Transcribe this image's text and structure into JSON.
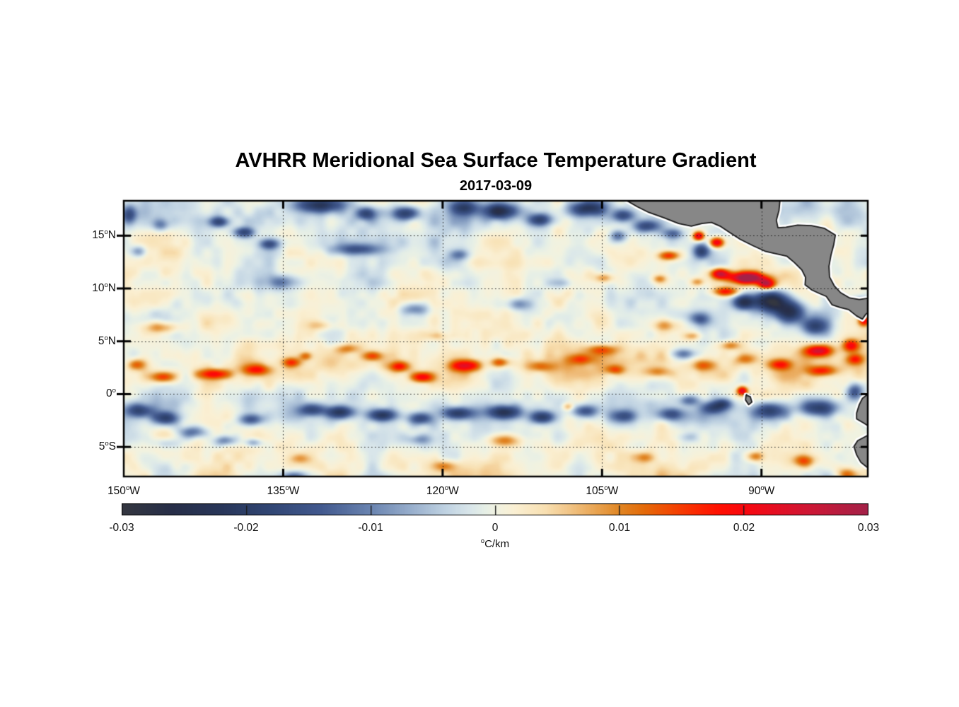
{
  "figure": {
    "title": "AVHRR Meridional Sea Surface Temperature Gradient",
    "date": "2017-03-09"
  },
  "chart_data": {
    "type": "heatmap",
    "title": "AVHRR Meridional Sea Surface Temperature Gradient",
    "subtitle": "2017-03-09",
    "lon_range_degW": [
      150,
      80
    ],
    "lat_range_degN": [
      -7.8,
      18.3
    ],
    "grid": {
      "style": "dotted",
      "lons_degW": [
        135,
        120,
        105,
        90
      ],
      "lats_degN": [
        15,
        10,
        5,
        0,
        -5
      ]
    },
    "x_axis": {
      "ticks": [
        {
          "lon": 150,
          "label": "150^oW"
        },
        {
          "lon": 135,
          "label": "135^oW"
        },
        {
          "lon": 120,
          "label": "120^oW"
        },
        {
          "lon": 105,
          "label": "105^oW"
        },
        {
          "lon": 90,
          "label": "90^oW"
        }
      ]
    },
    "y_axis": {
      "ticks": [
        {
          "lat": 15,
          "label": "15^oN"
        },
        {
          "lat": 10,
          "label": "10^oN"
        },
        {
          "lat": 5,
          "label": "5^oN"
        },
        {
          "lat": 0,
          "label": "0^o"
        },
        {
          "lat": -5,
          "label": "5^oS"
        }
      ]
    },
    "colorbar": {
      "min": -0.03,
      "max": 0.03,
      "tick_values": [
        -0.03,
        -0.02,
        -0.01,
        0,
        0.01,
        0.02,
        0.03
      ],
      "tick_labels": [
        "-0.03",
        "-0.02",
        "-0.01",
        "0",
        "0.01",
        "0.02",
        "0.03"
      ],
      "unit_label": "^oC/km",
      "orientation": "horizontal"
    },
    "colormap": [
      [
        -0.03,
        "#343740"
      ],
      [
        -0.026,
        "#272e48"
      ],
      [
        -0.022,
        "#283659"
      ],
      [
        -0.018,
        "#314674"
      ],
      [
        -0.014,
        "#42598e"
      ],
      [
        -0.01,
        "#6a84b0"
      ],
      [
        -0.007,
        "#94abca"
      ],
      [
        -0.004,
        "#bfd2e2"
      ],
      [
        -0.002,
        "#d9e6ea"
      ],
      [
        -0.0008,
        "#e6efe6"
      ],
      [
        0.0,
        "#f0f2e2"
      ],
      [
        0.0015,
        "#faf0d4"
      ],
      [
        0.004,
        "#f8e0b2"
      ],
      [
        0.006,
        "#f1c486"
      ],
      [
        0.008,
        "#e9a554"
      ],
      [
        0.01,
        "#e08624"
      ],
      [
        0.012,
        "#e46a09"
      ],
      [
        0.014,
        "#f14a03"
      ],
      [
        0.016,
        "#fa2b01"
      ],
      [
        0.018,
        "#ff1001"
      ],
      [
        0.02,
        "#f9080e"
      ],
      [
        0.0225,
        "#e50e22"
      ],
      [
        0.025,
        "#d01633"
      ],
      [
        0.0275,
        "#b91c3e"
      ],
      [
        0.03,
        "#a32148"
      ]
    ],
    "land_color": "#878787",
    "coast_halo_color": "#ffffff",
    "coast_line_color": "#1b1b1b",
    "bias_lat_gaussians": [
      [
        2.6,
        2.2,
        0.0035
      ],
      [
        -1.8,
        1.8,
        -0.0012
      ],
      [
        -6.5,
        2.0,
        0.0015
      ],
      [
        17.5,
        1.5,
        -0.0025
      ]
    ],
    "noise": {
      "seed": 77,
      "octaves": [
        [
          18,
          7,
          0.003
        ],
        [
          36,
          14,
          0.0026
        ],
        [
          72,
          27,
          0.0016
        ]
      ]
    },
    "features": [
      [
        149.5,
        17.0,
        0.7,
        0.9,
        -0.014
      ],
      [
        146.5,
        16.0,
        0.8,
        0.6,
        -0.01
      ],
      [
        141.0,
        16.3,
        0.9,
        0.5,
        -0.015
      ],
      [
        138.7,
        15.3,
        1.0,
        0.5,
        -0.017
      ],
      [
        136.3,
        14.2,
        0.9,
        0.5,
        -0.015
      ],
      [
        131.5,
        17.9,
        2.3,
        0.75,
        -0.021
      ],
      [
        127.2,
        17.1,
        1.0,
        0.6,
        -0.017
      ],
      [
        123.5,
        17.1,
        1.3,
        0.65,
        -0.019
      ],
      [
        118.0,
        17.6,
        1.3,
        0.7,
        -0.016
      ],
      [
        114.5,
        17.3,
        1.7,
        0.7,
        -0.021
      ],
      [
        110.8,
        16.5,
        1.2,
        0.6,
        -0.017
      ],
      [
        106.3,
        17.6,
        1.6,
        0.7,
        -0.019
      ],
      [
        103.0,
        16.9,
        1.1,
        0.6,
        -0.016
      ],
      [
        100.8,
        15.9,
        1.3,
        0.6,
        -0.016
      ],
      [
        98.3,
        15.2,
        0.9,
        0.5,
        -0.013
      ],
      [
        103.5,
        15.0,
        0.8,
        0.6,
        -0.013
      ],
      [
        128.0,
        13.7,
        2.2,
        0.55,
        -0.013
      ],
      [
        118.5,
        13.2,
        0.9,
        0.5,
        -0.009
      ],
      [
        148.6,
        13.5,
        0.8,
        0.55,
        -0.011
      ],
      [
        135.0,
        10.6,
        1.4,
        0.7,
        -0.011
      ],
      [
        122.6,
        8.0,
        1.3,
        0.6,
        -0.011
      ],
      [
        112.6,
        8.5,
        1.4,
        0.6,
        -0.009
      ],
      [
        109.0,
        10.5,
        1.0,
        0.5,
        -0.007
      ],
      [
        95.7,
        13.5,
        0.8,
        0.7,
        -0.015
      ],
      [
        95.8,
        7.1,
        1.0,
        0.6,
        -0.012
      ],
      [
        97.2,
        3.8,
        1.3,
        0.5,
        -0.011
      ],
      [
        95.9,
        14.95,
        0.55,
        0.45,
        0.026
      ],
      [
        94.2,
        14.35,
        0.7,
        0.5,
        0.024
      ],
      [
        98.7,
        13.1,
        1.0,
        0.45,
        0.016
      ],
      [
        93.9,
        11.4,
        0.9,
        0.5,
        0.026
      ],
      [
        91.3,
        11.0,
        1.7,
        0.55,
        0.034
      ],
      [
        89.5,
        10.4,
        0.8,
        0.5,
        0.024
      ],
      [
        93.4,
        9.7,
        1.2,
        0.45,
        0.018
      ],
      [
        96.0,
        10.6,
        0.7,
        0.4,
        0.01
      ],
      [
        99.6,
        10.9,
        0.7,
        0.4,
        0.009
      ],
      [
        104.8,
        11.0,
        0.9,
        0.45,
        0.009
      ],
      [
        89.2,
        8.8,
        1.6,
        0.95,
        -0.027
      ],
      [
        91.7,
        8.7,
        1.0,
        0.7,
        -0.021
      ],
      [
        87.3,
        7.7,
        1.5,
        1.0,
        -0.025
      ],
      [
        85.0,
        6.4,
        1.2,
        0.85,
        -0.018
      ],
      [
        80.6,
        8.6,
        0.8,
        0.6,
        -0.014
      ],
      [
        84.6,
        4.1,
        1.3,
        0.55,
        0.023
      ],
      [
        81.6,
        4.6,
        0.75,
        0.6,
        0.018
      ],
      [
        80.3,
        6.9,
        0.6,
        0.5,
        0.02
      ],
      [
        91.8,
        0.3,
        0.5,
        0.42,
        0.024
      ],
      [
        86.0,
        -6.3,
        1.0,
        0.6,
        0.014
      ],
      [
        90.6,
        -5.9,
        0.9,
        0.5,
        0.011
      ],
      [
        82.0,
        -7.6,
        1.0,
        0.6,
        0.012
      ],
      [
        146.5,
        6.3,
        1.6,
        0.55,
        0.01
      ],
      [
        148.8,
        2.8,
        0.9,
        0.55,
        0.012
      ],
      [
        146.3,
        1.6,
        1.2,
        0.5,
        0.013
      ],
      [
        141.5,
        1.9,
        1.6,
        0.5,
        0.018
      ],
      [
        137.5,
        2.3,
        1.3,
        0.5,
        0.014
      ],
      [
        134.2,
        3.0,
        0.9,
        0.45,
        0.012
      ],
      [
        132.9,
        3.6,
        0.6,
        0.4,
        0.01
      ],
      [
        131.5,
        6.5,
        1.3,
        0.5,
        0.006
      ],
      [
        129.0,
        4.3,
        1.2,
        0.45,
        0.009
      ],
      [
        126.6,
        3.6,
        1.0,
        0.45,
        0.012
      ],
      [
        124.1,
        2.6,
        1.0,
        0.5,
        0.016
      ],
      [
        121.9,
        1.6,
        1.1,
        0.5,
        0.019
      ],
      [
        120.5,
        5.5,
        1.0,
        0.45,
        0.006
      ],
      [
        117.9,
        2.7,
        1.4,
        0.55,
        0.02
      ],
      [
        114.6,
        3.0,
        0.9,
        0.45,
        0.013
      ],
      [
        110.7,
        2.6,
        1.3,
        0.5,
        0.009
      ],
      [
        107.0,
        3.3,
        1.2,
        0.5,
        0.01
      ],
      [
        105.0,
        4.2,
        1.5,
        0.5,
        0.011
      ],
      [
        103.8,
        2.3,
        0.9,
        0.45,
        0.011
      ],
      [
        99.8,
        2.1,
        1.2,
        0.5,
        0.008
      ],
      [
        99.0,
        6.5,
        1.2,
        0.6,
        0.01
      ],
      [
        96.5,
        5.5,
        0.8,
        0.4,
        0.008
      ],
      [
        95.5,
        2.7,
        1.1,
        0.5,
        0.009
      ],
      [
        93.0,
        4.6,
        1.0,
        0.45,
        0.011
      ],
      [
        91.5,
        3.3,
        1.0,
        0.5,
        0.008
      ],
      [
        88.3,
        2.8,
        1.1,
        0.5,
        0.014
      ],
      [
        84.3,
        2.2,
        1.4,
        0.5,
        0.015
      ],
      [
        81.2,
        3.3,
        0.8,
        0.5,
        0.013
      ],
      [
        148.5,
        -1.6,
        1.3,
        0.65,
        -0.016
      ],
      [
        146.0,
        -2.3,
        1.3,
        0.6,
        -0.015
      ],
      [
        143.5,
        -3.6,
        1.4,
        0.6,
        -0.013
      ],
      [
        140.5,
        -4.4,
        1.1,
        0.5,
        -0.011
      ],
      [
        138.0,
        -2.4,
        1.2,
        0.55,
        -0.014
      ],
      [
        137.8,
        -4.6,
        0.8,
        0.4,
        -0.009
      ],
      [
        132.3,
        -1.5,
        1.3,
        0.6,
        -0.015
      ],
      [
        129.6,
        -1.7,
        1.3,
        0.6,
        -0.019
      ],
      [
        125.6,
        -2.0,
        1.5,
        0.6,
        -0.021
      ],
      [
        122.1,
        -2.3,
        1.2,
        0.6,
        -0.017
      ],
      [
        118.6,
        -1.8,
        1.5,
        0.6,
        -0.019
      ],
      [
        114.2,
        -1.7,
        1.6,
        0.65,
        -0.021
      ],
      [
        110.6,
        -2.2,
        1.2,
        0.6,
        -0.017
      ],
      [
        108.2,
        -1.2,
        0.5,
        0.35,
        0.008
      ],
      [
        106.6,
        -1.6,
        1.2,
        0.6,
        -0.015
      ],
      [
        103.0,
        -2.1,
        1.2,
        0.6,
        -0.013
      ],
      [
        98.6,
        -1.9,
        1.3,
        0.6,
        -0.013
      ],
      [
        96.8,
        -0.6,
        1.0,
        0.5,
        -0.012
      ],
      [
        94.6,
        -1.3,
        1.2,
        0.6,
        -0.014
      ],
      [
        93.6,
        -0.9,
        0.8,
        0.5,
        -0.013
      ],
      [
        89.2,
        -1.6,
        1.6,
        0.8,
        -0.019
      ],
      [
        84.6,
        -1.3,
        1.8,
        0.8,
        -0.021
      ],
      [
        81.2,
        0.2,
        0.8,
        0.8,
        -0.016
      ],
      [
        146.0,
        -4.6,
        1.5,
        0.6,
        -0.007
      ],
      [
        134.0,
        -7.8,
        1.2,
        0.5,
        -0.012
      ],
      [
        122.2,
        -4.3,
        1.2,
        0.5,
        -0.008
      ],
      [
        97.0,
        -4.1,
        1.2,
        0.5,
        -0.006
      ],
      [
        114.2,
        -4.4,
        1.5,
        0.6,
        0.012
      ],
      [
        133.5,
        -6.1,
        1.1,
        0.5,
        0.007
      ],
      [
        120.0,
        -6.8,
        1.2,
        0.5,
        0.008
      ],
      [
        101.0,
        -6.0,
        1.0,
        0.5,
        0.008
      ]
    ],
    "land_polygons": {
      "central_america": [
        [
          102.9,
          18.45
        ],
        [
          101.7,
          17.75
        ],
        [
          100.6,
          17.2
        ],
        [
          99.2,
          16.7
        ],
        [
          97.8,
          16.15
        ],
        [
          96.6,
          15.9
        ],
        [
          95.6,
          16.15
        ],
        [
          94.7,
          16.25
        ],
        [
          93.9,
          15.9
        ],
        [
          93.0,
          15.3
        ],
        [
          92.0,
          14.65
        ],
        [
          90.8,
          14.05
        ],
        [
          89.6,
          13.5
        ],
        [
          88.5,
          13.25
        ],
        [
          87.6,
          13.05
        ],
        [
          86.9,
          12.45
        ],
        [
          86.2,
          11.75
        ],
        [
          85.85,
          11.05
        ],
        [
          85.9,
          10.35
        ],
        [
          85.25,
          9.85
        ],
        [
          84.6,
          9.55
        ],
        [
          83.9,
          9.25
        ],
        [
          83.35,
          8.45
        ],
        [
          82.6,
          8.2
        ],
        [
          81.8,
          8.0
        ],
        [
          81.05,
          7.4
        ],
        [
          80.5,
          7.1
        ],
        [
          80.2,
          7.55
        ],
        [
          79.8,
          7.85
        ],
        [
          79.8,
          9.1
        ],
        [
          80.8,
          8.95
        ],
        [
          81.7,
          9.1
        ],
        [
          82.55,
          9.6
        ],
        [
          83.15,
          10.25
        ],
        [
          83.6,
          11.1
        ],
        [
          83.65,
          12.1
        ],
        [
          83.45,
          13.2
        ],
        [
          83.2,
          14.15
        ],
        [
          83.05,
          15.05
        ],
        [
          84.1,
          15.7
        ],
        [
          85.3,
          15.95
        ],
        [
          86.6,
          16.0
        ],
        [
          87.7,
          15.8
        ],
        [
          88.45,
          15.75
        ],
        [
          88.6,
          16.45
        ],
        [
          88.35,
          17.4
        ],
        [
          88.25,
          18.45
        ]
      ],
      "ecuador_north": [
        [
          79.8,
          0.15
        ],
        [
          80.5,
          -0.4
        ],
        [
          80.8,
          -1.0
        ],
        [
          81.05,
          -1.8
        ],
        [
          81.05,
          -2.35
        ],
        [
          80.45,
          -2.7
        ],
        [
          80.05,
          -2.95
        ],
        [
          79.8,
          -3.1
        ]
      ],
      "peru_south": [
        [
          79.8,
          -3.8
        ],
        [
          80.95,
          -4.4
        ],
        [
          81.3,
          -4.95
        ],
        [
          81.05,
          -5.75
        ],
        [
          80.65,
          -6.45
        ],
        [
          80.1,
          -6.9
        ],
        [
          79.8,
          -7.0
        ]
      ],
      "galapagos": [
        [
          91.45,
          -0.1
        ],
        [
          91.05,
          -0.25
        ],
        [
          90.9,
          -0.75
        ],
        [
          91.2,
          -1.0
        ],
        [
          91.5,
          -0.55
        ]
      ]
    }
  }
}
